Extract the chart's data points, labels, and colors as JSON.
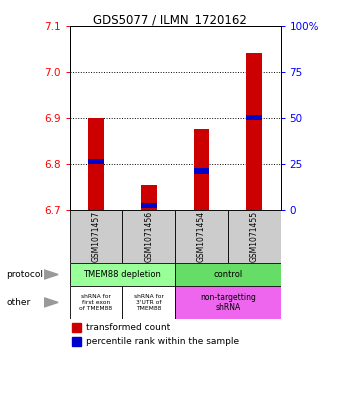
{
  "title": "GDS5077 / ILMN_1720162",
  "samples": [
    "GSM1071457",
    "GSM1071456",
    "GSM1071454",
    "GSM1071455"
  ],
  "bar_values": [
    6.9,
    6.755,
    6.875,
    7.04
  ],
  "bar_bottom": 6.7,
  "percentile_values": [
    6.805,
    6.71,
    6.785,
    6.9
  ],
  "ylim": [
    6.7,
    7.1
  ],
  "yticks_left": [
    6.7,
    6.8,
    6.9,
    7.0,
    7.1
  ],
  "yticks_right": [
    0,
    25,
    50,
    75,
    100
  ],
  "yticks_right_labels": [
    "0",
    "25",
    "50",
    "75",
    "100%"
  ],
  "bar_color": "#cc0000",
  "percentile_color": "#0000cc",
  "dotted_lines": [
    6.8,
    6.9,
    7.0
  ],
  "protocol_labels": [
    "TMEM88 depletion",
    "control"
  ],
  "protocol_colors": [
    "#99ff99",
    "#66dd66"
  ],
  "other_labels": [
    "shRNA for\nfirst exon\nof TMEM88",
    "shRNA for\n3'UTR of\nTMEM88",
    "non-targetting\nshRNA"
  ],
  "other_colors": [
    "#ffffff",
    "#ffffff",
    "#ee66ee"
  ],
  "legend_red_label": "transformed count",
  "legend_blue_label": "percentile rank within the sample",
  "sample_col_color": "#cccccc",
  "left_labels": [
    "protocol",
    "other"
  ],
  "bar_width": 0.3
}
